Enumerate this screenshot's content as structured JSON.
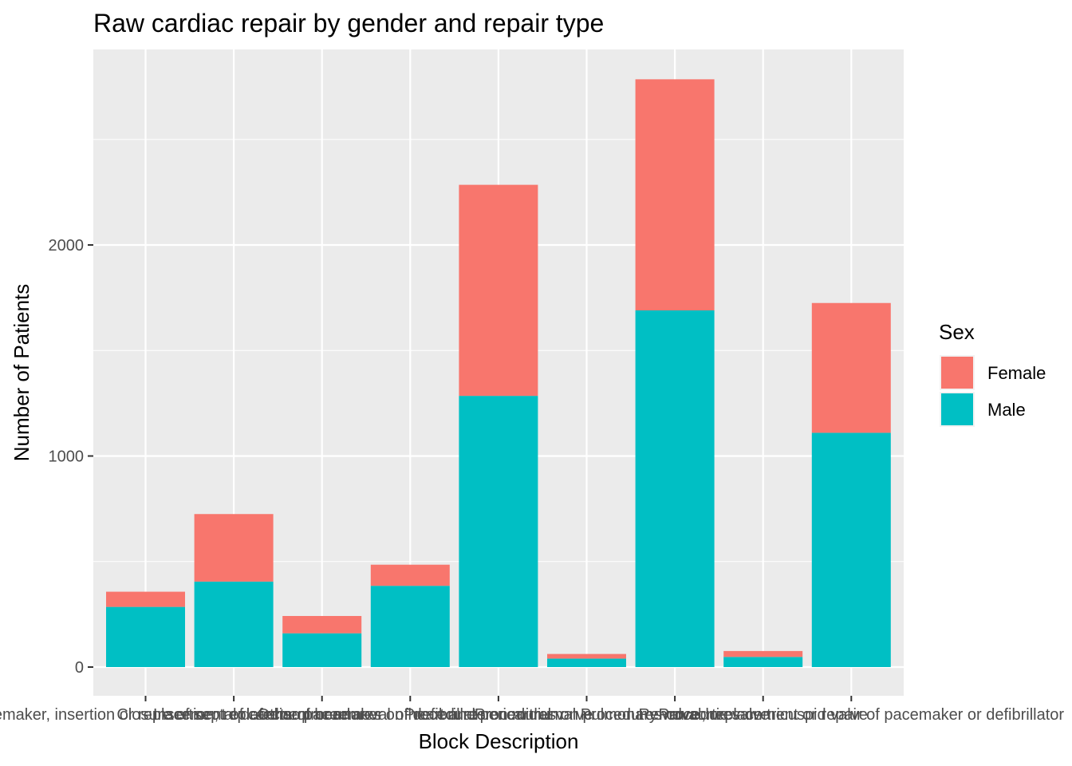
{
  "chart_data": {
    "type": "bar",
    "stacked": true,
    "title": "Raw cardiac repair by gender and repair type",
    "xlabel": "Block Description",
    "ylabel": "Number of Patients",
    "ylim": [
      0,
      2800
    ],
    "yticks": [
      0,
      1000,
      2000
    ],
    "grid": true,
    "categories": [
      "Cardiac pacemaker, insertion or replacement of cardiac pacemaker",
      "Closure of septal defects of heart",
      "Insertion, replacement or removal of defibrillator",
      "Other procedures on heart and pericardium",
      "Procedures on mitral valve",
      "Procedures on pulmonary valve",
      "Procedures on aortic valve",
      "Procedures on tricuspid valve",
      "Removal, replacement or repair of pacemaker or defibrillator"
    ],
    "series": [
      {
        "name": "Male",
        "color": "#00BFC4",
        "values": [
          285,
          405,
          160,
          385,
          1285,
          40,
          1690,
          48,
          1110
        ]
      },
      {
        "name": "Female",
        "color": "#F8766D",
        "values": [
          72,
          320,
          82,
          100,
          1000,
          22,
          1095,
          28,
          615
        ]
      }
    ],
    "legend": {
      "title": "Sex",
      "placement": "right",
      "entries": [
        {
          "label": "Female",
          "color": "#F8766D"
        },
        {
          "label": "Male",
          "color": "#00BFC4"
        }
      ]
    }
  }
}
